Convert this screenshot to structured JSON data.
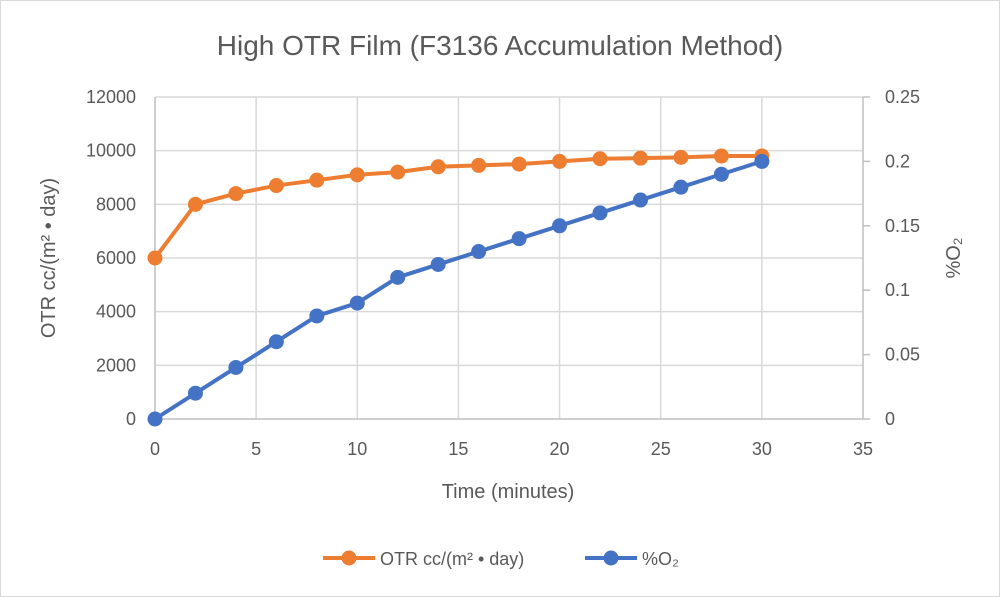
{
  "chart_data": {
    "type": "line",
    "title": "High OTR Film (F3136 Accumulation Method)",
    "xlabel": "Time (minutes)",
    "ylabel": "OTR  cc/(m² • day)",
    "y2label": "%O₂",
    "xlim": [
      0,
      35
    ],
    "ylim": [
      0,
      12000
    ],
    "y2lim": [
      0,
      0.25
    ],
    "x_ticks": [
      "0",
      "5",
      "10",
      "15",
      "20",
      "25",
      "30",
      "35"
    ],
    "y_ticks": [
      "0",
      "2000",
      "4000",
      "6000",
      "8000",
      "10000",
      "12000"
    ],
    "y2_ticks": [
      "0",
      "0.05",
      "0.1",
      "0.15",
      "0.2",
      "0.25"
    ],
    "grid": true,
    "legend_position": "bottom",
    "x": [
      0,
      2,
      4,
      6,
      8,
      10,
      12,
      14,
      16,
      18,
      20,
      22,
      24,
      26,
      28,
      30
    ],
    "series": [
      {
        "name": "OTR cc/(m² • day)",
        "axis": "left",
        "color": "#ED7D31",
        "values": [
          6000,
          8000,
          8400,
          8700,
          8900,
          9100,
          9200,
          9400,
          9450,
          9500,
          9600,
          9700,
          9720,
          9750,
          9800,
          9800
        ]
      },
      {
        "name": "%O₂",
        "axis": "right",
        "color": "#4472C4",
        "values": [
          0,
          0.02,
          0.04,
          0.06,
          0.08,
          0.09,
          0.11,
          0.12,
          0.13,
          0.14,
          0.15,
          0.16,
          0.17,
          0.18,
          0.19,
          0.2
        ]
      }
    ]
  }
}
